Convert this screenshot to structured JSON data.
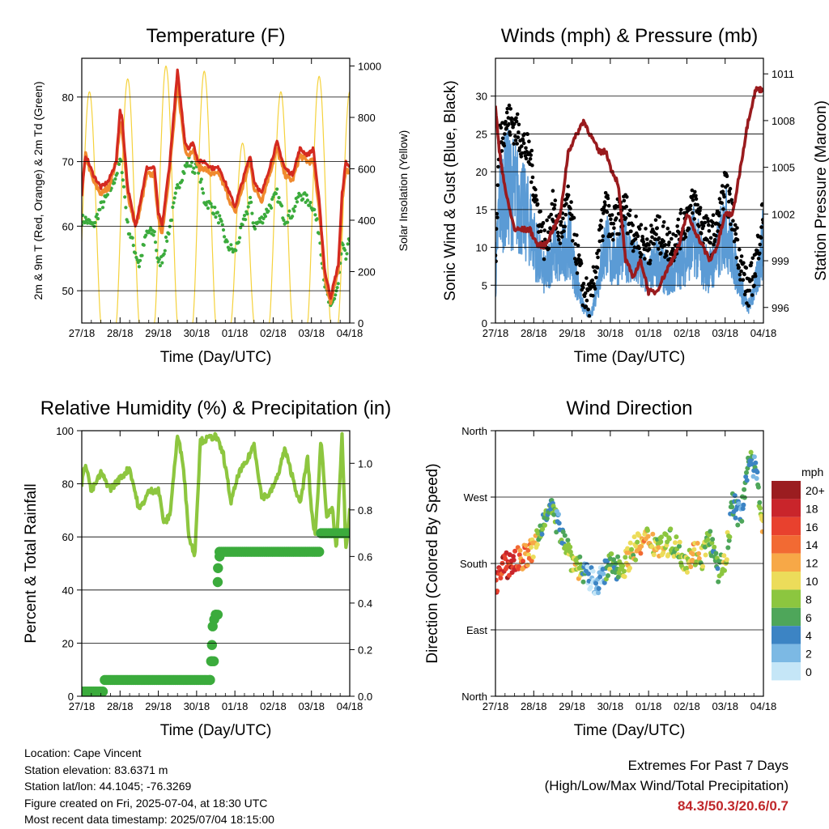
{
  "x_ticks": [
    "27/18",
    "28/18",
    "29/18",
    "30/18",
    "01/18",
    "02/18",
    "03/18",
    "04/18"
  ],
  "x_label": "Time (Day/UTC)",
  "colors": {
    "temp9m": "#d42a20",
    "temp2m": "#f08a2e",
    "dew": "#3bab3c",
    "solar": "#f5d23c",
    "gust": "#000000",
    "wind": "#5b9bd5",
    "pressure": "#9a1b1e",
    "rh": "#8dc63f",
    "precip": "#3bab3c",
    "extremes": "#c0282b"
  },
  "chart_data": [
    {
      "id": "temperature",
      "type": "line",
      "title": "Temperature (F)",
      "xlabel": "Time (Day/UTC)",
      "ylabel": "2m & 9m T (Red, Orange) & 2m Td (Green)",
      "ylabel_right": "Solar Insolation (Yellow)",
      "ylim": [
        45,
        86
      ],
      "yticks": [
        50,
        60,
        70,
        80
      ],
      "ylim_right": [
        0,
        1030
      ],
      "yticks_right": [
        0,
        200,
        400,
        600,
        800,
        1000
      ],
      "x": [
        0,
        0.1,
        0.3,
        0.5,
        0.7,
        0.9,
        1.0,
        1.05,
        1.2,
        1.4,
        1.5,
        1.7,
        1.9,
        2.0,
        2.1,
        2.3,
        2.5,
        2.7,
        2.8,
        2.9,
        3.05,
        3.2,
        3.4,
        3.6,
        3.8,
        4.0,
        4.2,
        4.4,
        4.5,
        4.7,
        4.9,
        5.1,
        5.3,
        5.5,
        5.7,
        5.9,
        6.05,
        6.2,
        6.35,
        6.5,
        6.7,
        6.8,
        6.9,
        7.0
      ],
      "series": [
        {
          "name": "9m T",
          "values": [
            65,
            71,
            68,
            66,
            67,
            70,
            78,
            77,
            66,
            60,
            63,
            69,
            69,
            62,
            60,
            70,
            84,
            73,
            72,
            73,
            70,
            70,
            69,
            69,
            66,
            63,
            67,
            71,
            67,
            65,
            69,
            73,
            69,
            68,
            72,
            71,
            72,
            64,
            53,
            49,
            54,
            65,
            70,
            69
          ]
        },
        {
          "name": "2m T",
          "values": [
            65,
            71,
            67,
            65,
            66,
            70,
            76,
            75,
            65,
            60,
            62,
            68,
            68,
            61,
            59,
            69,
            82,
            72,
            71,
            72,
            69,
            69,
            68,
            68,
            65,
            62,
            66,
            70,
            66,
            64,
            68,
            72,
            68,
            67,
            71,
            70,
            70,
            63,
            52,
            48,
            53,
            64,
            69,
            68
          ]
        },
        {
          "name": "2m Td",
          "values": [
            61,
            61,
            60,
            63,
            65,
            68,
            70,
            69,
            60,
            56,
            54,
            59,
            59,
            54,
            55,
            60,
            66,
            69,
            70,
            69,
            69,
            64,
            63,
            61,
            57,
            56,
            60,
            64,
            60,
            61,
            63,
            65,
            61,
            62,
            65,
            64,
            63,
            59,
            51,
            47,
            51,
            57,
            55,
            58
          ]
        }
      ],
      "solar": {
        "name": "Solar Insolation",
        "day_peaks": [
          0.2,
          1.2,
          2.2,
          3.2,
          4.2,
          5.2,
          6.2,
          7.0
        ],
        "peak": [
          900,
          950,
          1000,
          980,
          700,
          900,
          960,
          900
        ]
      }
    },
    {
      "id": "winds",
      "type": "line",
      "title": "Winds (mph) & Pressure (mb)",
      "xlabel": "Time (Day/UTC)",
      "ylabel": "Sonic Wind & Gust (Blue, Black)",
      "ylabel_right": "Station Pressure (Maroon)",
      "ylim": [
        0,
        35
      ],
      "yticks": [
        0,
        5,
        10,
        15,
        20,
        25,
        30
      ],
      "ylim_right": [
        995,
        1012
      ],
      "yticks_right": [
        996,
        999,
        1002,
        1005,
        1008,
        1011
      ],
      "x": [
        0,
        0.1,
        0.3,
        0.5,
        0.7,
        0.9,
        1.1,
        1.3,
        1.5,
        1.7,
        1.9,
        2.1,
        2.3,
        2.5,
        2.7,
        2.9,
        3.0,
        3.2,
        3.4,
        3.6,
        3.8,
        4.0,
        4.2,
        4.4,
        4.6,
        4.8,
        5.0,
        5.2,
        5.4,
        5.6,
        5.8,
        6.0,
        6.2,
        6.4,
        6.6,
        6.8,
        7.0
      ],
      "series": [
        {
          "name": "Gust",
          "values": [
            8,
            24,
            27,
            26,
            24,
            22,
            15,
            10,
            15,
            12,
            16,
            10,
            4,
            3,
            10,
            16,
            12,
            14,
            15,
            12,
            11,
            10,
            12,
            11,
            10,
            12,
            14,
            16,
            13,
            11,
            13,
            18,
            14,
            8,
            4,
            8,
            15
          ]
        },
        {
          "name": "Wind",
          "values": [
            5,
            16,
            18,
            17,
            15,
            13,
            9,
            6,
            10,
            8,
            11,
            6,
            2,
            1,
            6,
            11,
            8,
            9,
            10,
            8,
            7,
            6,
            8,
            7,
            6,
            8,
            9,
            11,
            8,
            7,
            9,
            13,
            9,
            5,
            2,
            5,
            11
          ]
        },
        {
          "name": "Pressure",
          "values": [
            1009,
            1006,
            1003,
            1001,
            1001,
            1001,
            1000,
            1000,
            1001,
            1002,
            1006,
            1007,
            1008,
            1007,
            1006,
            1006,
            1005,
            1004,
            999,
            998,
            999,
            997,
            997,
            998,
            999,
            1000,
            1002,
            1001,
            1000,
            999,
            1000,
            1002,
            1002,
            1005,
            1008,
            1010,
            1010
          ]
        }
      ]
    },
    {
      "id": "humidity",
      "type": "line",
      "title": "Relative Humidity (%) & Precipitation (in)",
      "xlabel": "Time (Day/UTC)",
      "ylabel": "Percent & Total Rainfall",
      "ylim": [
        0,
        100
      ],
      "yticks": [
        0,
        20,
        40,
        60,
        80,
        100
      ],
      "ylim_right": [
        0,
        1.14
      ],
      "yticks_right": [
        0.0,
        0.2,
        0.4,
        0.6,
        0.8,
        1.0
      ],
      "x": [
        0,
        0.1,
        0.25,
        0.5,
        0.75,
        1.0,
        1.25,
        1.5,
        1.75,
        2.0,
        2.15,
        2.3,
        2.5,
        2.65,
        2.8,
        2.95,
        3.1,
        3.3,
        3.5,
        3.7,
        3.9,
        4.1,
        4.3,
        4.5,
        4.7,
        4.9,
        5.1,
        5.3,
        5.5,
        5.7,
        5.9,
        6.0,
        6.1,
        6.25,
        6.4,
        6.55,
        6.65,
        6.8,
        6.9,
        7.0
      ],
      "series": [
        {
          "name": "RH",
          "values": [
            80,
            88,
            77,
            84,
            78,
            82,
            86,
            70,
            77,
            78,
            65,
            68,
            98,
            88,
            60,
            53,
            96,
            97,
            98,
            91,
            73,
            84,
            88,
            95,
            75,
            76,
            82,
            93,
            83,
            72,
            90,
            70,
            60,
            97,
            68,
            70,
            55,
            98,
            55,
            70
          ]
        },
        {
          "name": "Precip",
          "step": true,
          "x": [
            0,
            0.6,
            0.6,
            3.35,
            3.35,
            3.45,
            3.55,
            3.55,
            6.2,
            6.2,
            7.0
          ],
          "values": [
            0.02,
            0.02,
            0.07,
            0.07,
            0.15,
            0.35,
            0.35,
            0.62,
            0.62,
            0.7,
            0.7
          ]
        }
      ]
    },
    {
      "id": "direction",
      "type": "scatter",
      "title": "Wind Direction",
      "xlabel": "Time (Day/UTC)",
      "ylabel": "Direction (Colored By Speed)",
      "yticks": [
        "North",
        "East",
        "South",
        "West",
        "North"
      ],
      "ylim": [
        0,
        360
      ],
      "colorbar": {
        "title": "mph",
        "labels": [
          "20+",
          "18",
          "16",
          "14",
          "12",
          "10",
          "8",
          "6",
          "4",
          "2",
          "0"
        ],
        "colors": [
          "#9b1d20",
          "#c9252b",
          "#e8412e",
          "#f26a33",
          "#f7a847",
          "#ecdc5a",
          "#8cc63f",
          "#4ea65a",
          "#3c84c4",
          "#7cb9e4",
          "#c5e6f7"
        ]
      },
      "x": [
        0,
        0.2,
        0.4,
        0.6,
        0.8,
        1.0,
        1.2,
        1.4,
        1.6,
        1.8,
        2.0,
        2.2,
        2.4,
        2.6,
        2.8,
        3.0,
        3.2,
        3.4,
        3.6,
        3.8,
        4.0,
        4.2,
        4.4,
        4.6,
        4.8,
        5.0,
        5.2,
        5.4,
        5.6,
        5.8,
        6.0,
        6.2,
        6.4,
        6.6,
        6.8,
        7.0
      ],
      "values": [
        155,
        175,
        180,
        185,
        190,
        200,
        225,
        265,
        235,
        215,
        185,
        175,
        160,
        155,
        160,
        180,
        175,
        180,
        200,
        205,
        215,
        205,
        205,
        210,
        195,
        185,
        195,
        190,
        215,
        170,
        180,
        265,
        240,
        320,
        305,
        230
      ],
      "speeds": [
        16,
        17,
        17,
        15,
        13,
        12,
        6,
        5,
        5,
        6,
        9,
        9,
        2,
        1,
        3,
        7,
        7,
        10,
        9,
        11,
        10,
        9,
        10,
        7,
        9,
        9,
        11,
        8,
        6,
        6,
        9,
        5,
        3,
        6,
        4,
        10
      ]
    }
  ],
  "info": {
    "location": "Location: Cape Vincent",
    "elevation": "Station elevation: 83.6371 m",
    "latlon": "Station lat/lon: 44.1045; -76.3269",
    "created": "Figure created on Fri, 2025-07-04, at 18:30 UTC",
    "recent": "Most recent data timestamp: 2025/07/04 18:15:00"
  },
  "extremes": {
    "title": "Extremes For Past 7 Days",
    "subtitle": "(High/Low/Max Wind/Total Precipitation)",
    "values": "84.3/50.3/20.6/0.7"
  }
}
